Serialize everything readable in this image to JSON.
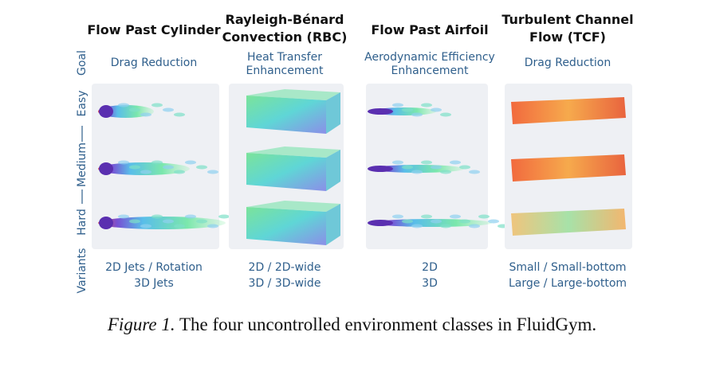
{
  "row_labels": [
    "Goal",
    "Easy",
    "Medium",
    "Hard",
    "Variants"
  ],
  "columns": [
    {
      "title": [
        "Flow Past Cylinder"
      ],
      "goal": [
        "Drag Reduction"
      ],
      "variants": [
        "2D Jets / Rotation",
        "3D Jets"
      ]
    },
    {
      "title": [
        "Rayleigh-Bénard",
        "Convection (RBC)"
      ],
      "goal": [
        "Heat Transfer",
        "Enhancement"
      ],
      "variants": [
        "2D / 2D-wide",
        "3D / 3D-wide"
      ]
    },
    {
      "title": [
        "Flow Past Airfoil"
      ],
      "goal": [
        "Aerodynamic Efficiency",
        "Enhancement"
      ],
      "variants": [
        "2D",
        "3D"
      ]
    },
    {
      "title": [
        "Turbulent Channel",
        "Flow (TCF)"
      ],
      "goal": [
        "Drag Reduction"
      ],
      "variants": [
        "Small / Small-bottom",
        "Large / Large-bottom"
      ]
    }
  ],
  "caption": {
    "label": "Figure 1.",
    "text": "The four uncontrolled environment classes in FluidGym."
  }
}
